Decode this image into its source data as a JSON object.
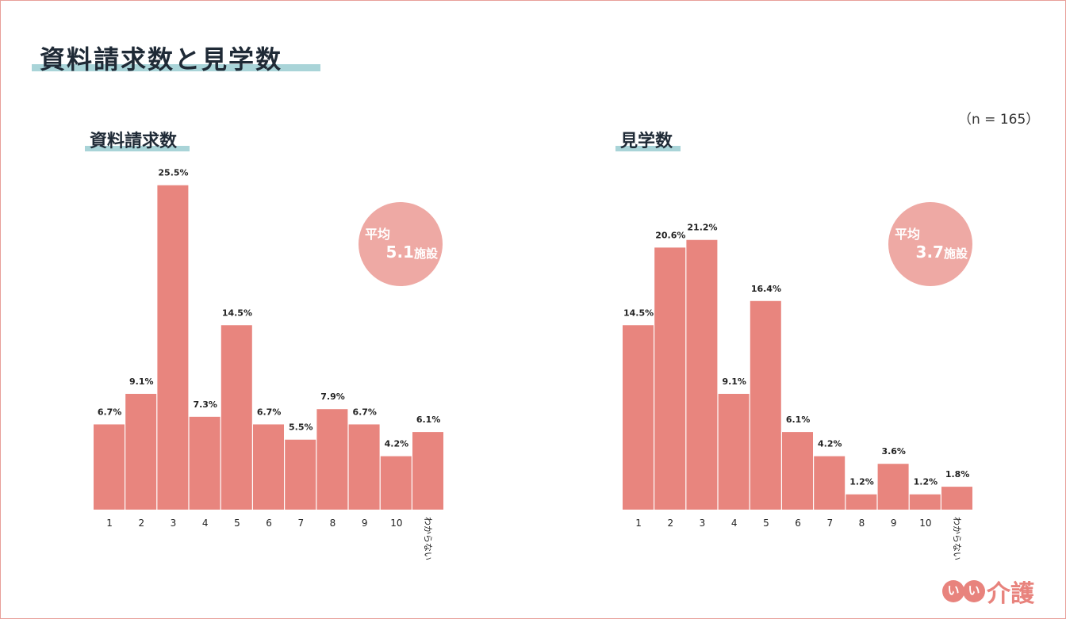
{
  "title": "資料請求数と見学数",
  "n_label": "（n = 165）",
  "colors": {
    "bar": "#e8857e",
    "avg_circle": "#eea9a4",
    "accent_underline": "#a9d4d8"
  },
  "logo": {
    "left": "い",
    "right": "い",
    "text": "介護"
  },
  "chart_data": [
    {
      "type": "bar",
      "title": "資料請求数",
      "categories": [
        "1",
        "2",
        "3",
        "4",
        "5",
        "6",
        "7",
        "8",
        "9",
        "10",
        "わからない"
      ],
      "values": [
        6.7,
        9.1,
        25.5,
        7.3,
        14.5,
        6.7,
        5.5,
        7.9,
        6.7,
        4.2,
        6.1
      ],
      "value_labels": [
        "6.7%",
        "9.1%",
        "25.5%",
        "7.3%",
        "14.5%",
        "6.7%",
        "5.5%",
        "7.9%",
        "6.7%",
        "4.2%",
        "6.1%"
      ],
      "average": {
        "label": "平均",
        "value": "5.1",
        "unit": "施設"
      },
      "xlabel": "",
      "ylabel": "",
      "grid": false
    },
    {
      "type": "bar",
      "title": "見学数",
      "categories": [
        "1",
        "2",
        "3",
        "4",
        "5",
        "6",
        "7",
        "8",
        "9",
        "10",
        "わからない"
      ],
      "values": [
        14.5,
        20.6,
        21.2,
        9.1,
        16.4,
        6.1,
        4.2,
        1.2,
        3.6,
        1.2,
        1.8
      ],
      "value_labels": [
        "14.5%",
        "20.6%",
        "21.2%",
        "9.1%",
        "16.4%",
        "6.1%",
        "4.2%",
        "1.2%",
        "3.6%",
        "1.2%",
        "1.8%"
      ],
      "average": {
        "label": "平均",
        "value": "3.7",
        "unit": "施設"
      },
      "xlabel": "",
      "ylabel": "",
      "grid": false
    }
  ]
}
